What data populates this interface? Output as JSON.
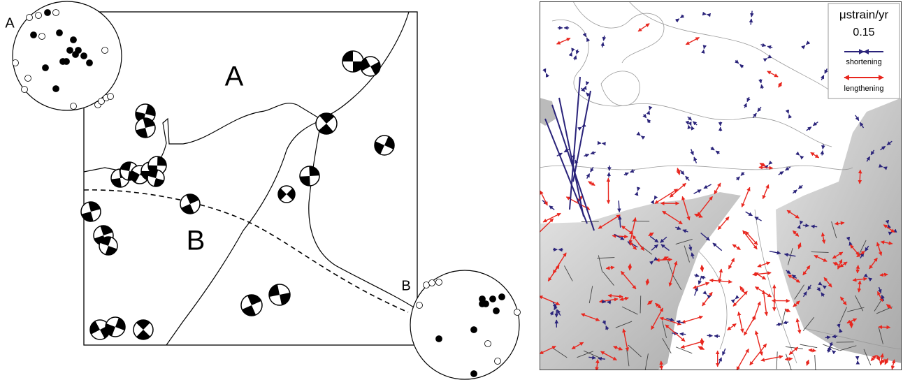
{
  "left_map": {
    "region_labels": [
      "A",
      "B"
    ],
    "stereonets": [
      {
        "label": "A"
      },
      {
        "label": "B"
      }
    ]
  },
  "right_map": {
    "legend": {
      "title": "μstrain/yr",
      "scale": "0.15",
      "items": [
        "shortening",
        "lengthening"
      ]
    }
  }
}
